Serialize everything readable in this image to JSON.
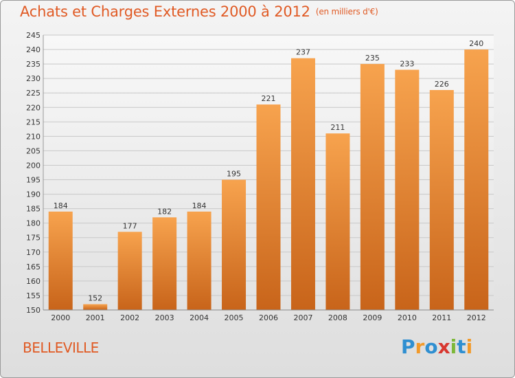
{
  "chart_data": {
    "type": "bar",
    "title": "Achats et Charges Externes 2000 à 2012",
    "subtitle": "(en milliers d'€)",
    "categories": [
      "2000",
      "2001",
      "2002",
      "2003",
      "2004",
      "2005",
      "2006",
      "2007",
      "2008",
      "2009",
      "2010",
      "2011",
      "2012"
    ],
    "values": [
      184,
      152,
      177,
      182,
      184,
      195,
      221,
      237,
      211,
      235,
      233,
      226,
      240
    ],
    "ylim": [
      150,
      245
    ],
    "yticks": [
      150,
      155,
      160,
      165,
      170,
      175,
      180,
      185,
      190,
      195,
      200,
      205,
      210,
      215,
      220,
      225,
      230,
      235,
      240,
      245
    ],
    "grid": true,
    "bar_color_top": "#f7a34e",
    "bar_color_bottom": "#c8641a"
  },
  "footer": {
    "commune": "BELLEVILLE"
  },
  "logo": {
    "text": "Proxiti",
    "letters": [
      {
        "ch": "P",
        "color": "#2f8fd1"
      },
      {
        "ch": "r",
        "color": "#f29a2a"
      },
      {
        "ch": "o",
        "color": "#2f8fd1"
      },
      {
        "ch": "x",
        "color": "#d8372f"
      },
      {
        "ch": "i",
        "color": "#7db83a"
      },
      {
        "ch": "t",
        "color": "#2f8fd1"
      },
      {
        "ch": "i",
        "color": "#f29a2a"
      }
    ]
  },
  "colors": {
    "title": "#e05a24",
    "grid": "#c8c8c8"
  }
}
